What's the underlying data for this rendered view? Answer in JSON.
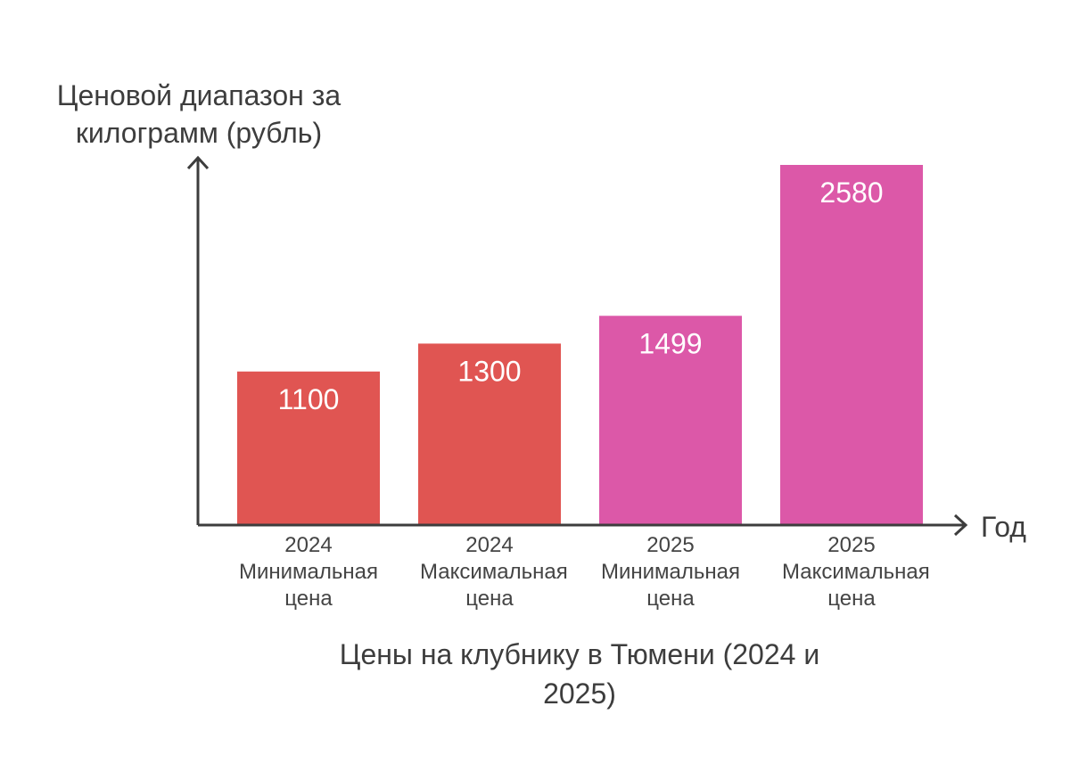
{
  "chart_data": {
    "type": "bar",
    "title": "Цены на клубнику в Тюмени (2024 и 2025)",
    "xlabel": "Год",
    "ylabel": "Ценовой диапазон за килограмм (рубль)",
    "ylim": [
      0,
      2700
    ],
    "categories": [
      {
        "year": "2024",
        "label": "Минимальная цена"
      },
      {
        "year": "2024",
        "label": "Максимальная цена"
      },
      {
        "year": "2025",
        "label": "Минимальная цена"
      },
      {
        "year": "2025",
        "label": "Максимальная цена"
      }
    ],
    "values": [
      1100,
      1300,
      1499,
      2580
    ],
    "colors": [
      "#e05552",
      "#e05552",
      "#dc58a8",
      "#dc58a8"
    ],
    "axis_color": "#3d3d3d",
    "label_color": "#ffffff"
  }
}
